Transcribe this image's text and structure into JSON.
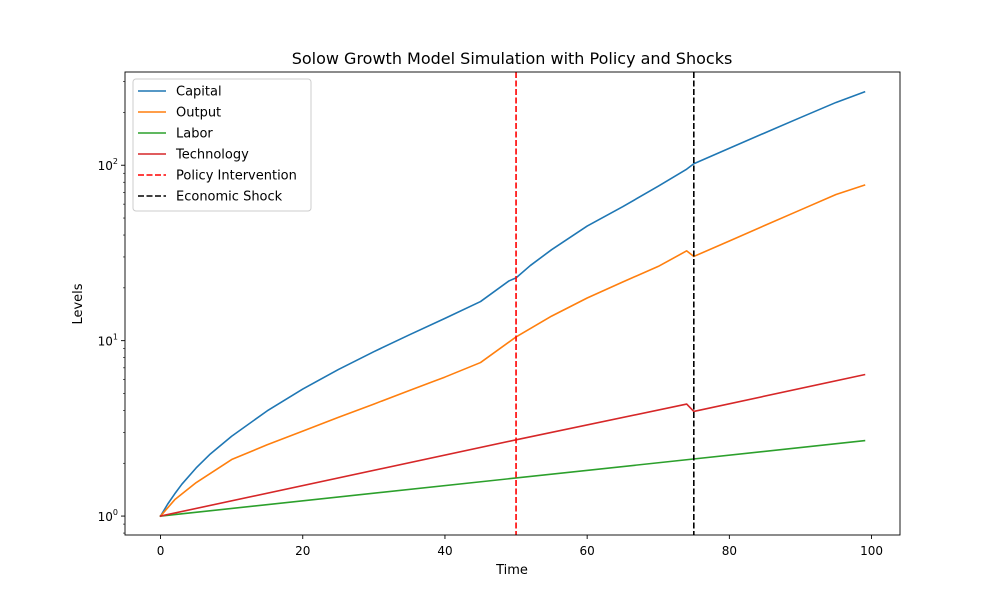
{
  "chart_data": {
    "type": "line",
    "title": "Solow Growth Model Simulation with Policy and Shocks",
    "xlabel": "Time",
    "ylabel": "Levels",
    "xlim": [
      -5,
      104
    ],
    "ylim": [
      0.78,
      340
    ],
    "yscale": "log",
    "grid": false,
    "legend_position": "top-left",
    "x_ticks": [
      0,
      20,
      40,
      60,
      80,
      100
    ],
    "x_tick_labels": [
      "0",
      "20",
      "40",
      "60",
      "80",
      "100"
    ],
    "y_ticks": [
      1,
      10,
      100
    ],
    "y_tick_labels": [
      {
        "base": "10",
        "exp": "0"
      },
      {
        "base": "10",
        "exp": "1"
      },
      {
        "base": "10",
        "exp": "2"
      }
    ],
    "series": [
      {
        "name": "Capital",
        "color": "#1f77b4",
        "x": [
          0,
          1,
          2,
          3,
          5,
          7,
          10,
          15,
          20,
          25,
          30,
          35,
          40,
          45,
          49,
          50,
          52,
          55,
          60,
          65,
          70,
          74,
          75,
          80,
          85,
          90,
          95,
          99
        ],
        "values": [
          1.0,
          1.17,
          1.34,
          1.52,
          1.88,
          2.26,
          2.85,
          3.98,
          5.3,
          6.84,
          8.65,
          10.8,
          13.4,
          16.7,
          21.9,
          22.8,
          26.8,
          33.0,
          45.0,
          58.0,
          76.0,
          95.0,
          102.0,
          125.0,
          153.0,
          187.0,
          228.0,
          262.0
        ]
      },
      {
        "name": "Output",
        "color": "#ff7f0e",
        "x": [
          0,
          2,
          5,
          10,
          15,
          20,
          25,
          30,
          35,
          40,
          45,
          50,
          55,
          60,
          65,
          70,
          74,
          75,
          80,
          85,
          90,
          95,
          99
        ],
        "values": [
          1.0,
          1.24,
          1.55,
          2.1,
          2.55,
          3.05,
          3.65,
          4.35,
          5.2,
          6.2,
          7.5,
          10.5,
          13.8,
          17.5,
          21.6,
          26.5,
          32.5,
          30.2,
          37.0,
          45.4,
          55.6,
          68.1,
          77.0
        ]
      },
      {
        "name": "Labor",
        "color": "#2ca02c",
        "x": [
          0,
          99
        ],
        "values": [
          1.0,
          2.69
        ]
      },
      {
        "name": "Technology",
        "color": "#d62728",
        "x": [
          0,
          50,
          74,
          75,
          99
        ],
        "values": [
          1.0,
          2.72,
          4.35,
          3.95,
          6.4
        ]
      }
    ],
    "vlines": [
      {
        "name": "Policy Intervention",
        "x": 50,
        "color": "#ff0000",
        "style": "dashed"
      },
      {
        "name": "Economic Shock",
        "x": 75,
        "color": "#000000",
        "style": "dashed"
      }
    ]
  }
}
